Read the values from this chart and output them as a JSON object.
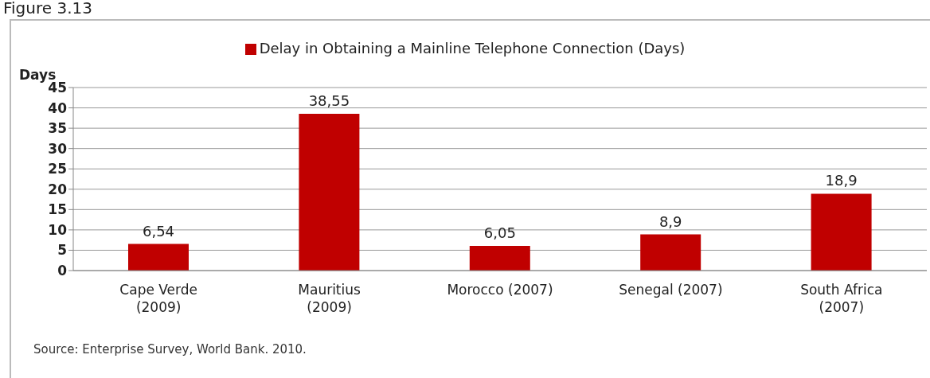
{
  "chart_data": {
    "type": "bar",
    "title": "Figure 3.13",
    "ylabel": "Days",
    "categories": [
      "Cape Verde (2009)",
      "Mauritius (2009)",
      "Morocco (2007)",
      "Senegal (2007)",
      "South Africa (2007)"
    ],
    "series": [
      {
        "name": "Delay in Obtaining a Mainline Telephone Connection (Days)",
        "color": "#c00000",
        "values": [
          6.54,
          38.55,
          6.05,
          8.9,
          18.9
        ],
        "value_labels": [
          "6,54",
          "38,55",
          "6,05",
          "8,9",
          "18,9"
        ]
      }
    ],
    "ylim": [
      0,
      45
    ],
    "yticks": [
      0,
      5,
      10,
      15,
      20,
      25,
      30,
      35,
      40,
      45
    ],
    "grid": "y",
    "legend": "top",
    "annotations": [
      "Source: Enterprise Survey, World Bank. 2010."
    ]
  }
}
